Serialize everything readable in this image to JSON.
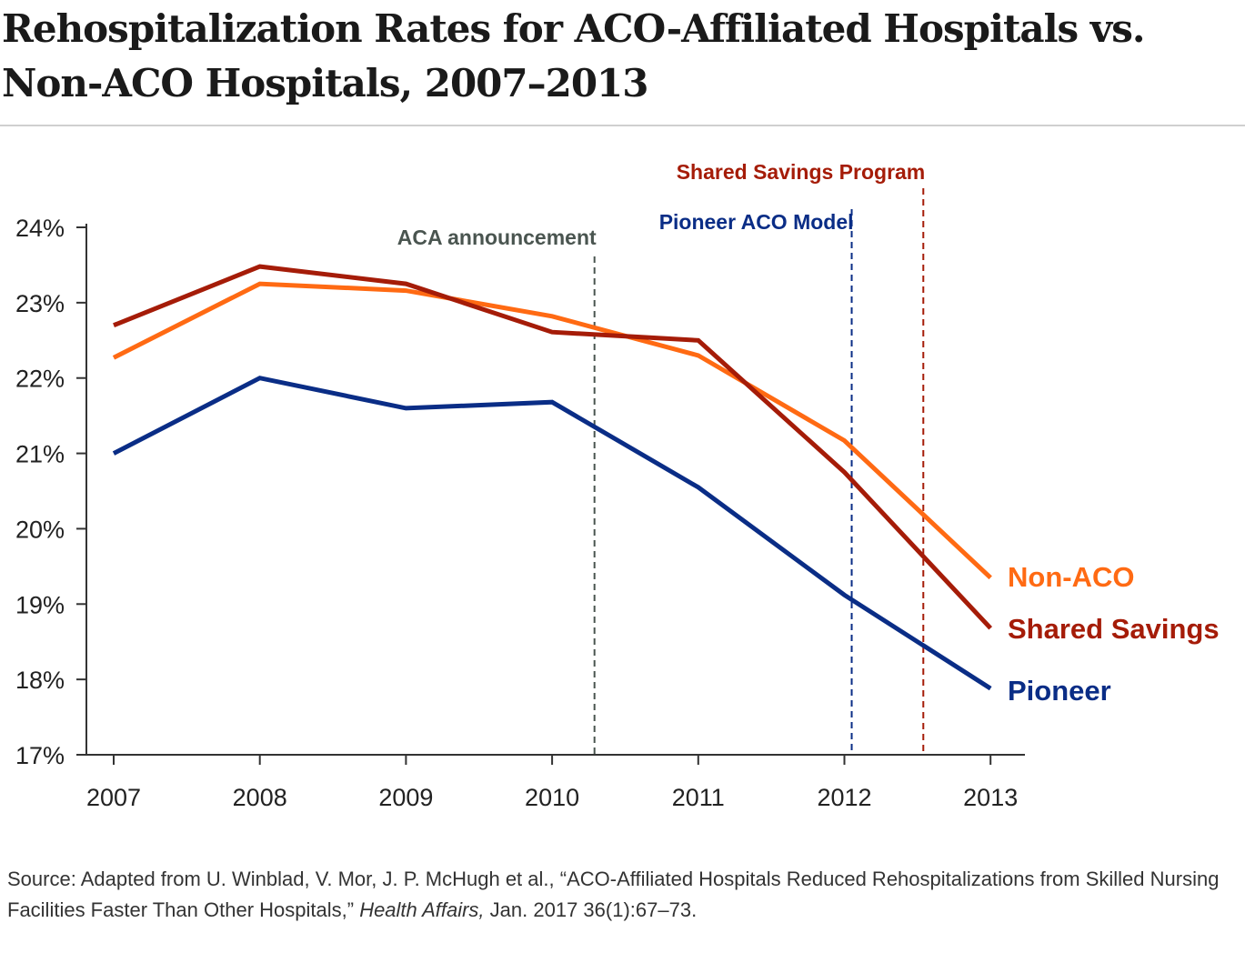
{
  "title": "Rehospitalization Rates for ACO-Affiliated Hospitals vs. Non-ACO Hospitals, 2007–2013",
  "chart_data": {
    "type": "line",
    "title": "Rehospitalization Rates for ACO-Affiliated Hospitals vs. Non-ACO Hospitals, 2007–2013",
    "xlabel": "",
    "ylabel": "",
    "x": [
      2007,
      2008,
      2009,
      2010,
      2011,
      2012,
      2013
    ],
    "x_tick_labels": [
      "2007",
      "2008",
      "2009",
      "2010",
      "2011",
      "2012",
      "2013"
    ],
    "ylim": [
      17,
      24
    ],
    "y_ticks": [
      17,
      18,
      19,
      20,
      21,
      22,
      23,
      24
    ],
    "y_tick_labels": [
      "17%",
      "18%",
      "19%",
      "20%",
      "21%",
      "22%",
      "23%",
      "24%"
    ],
    "grid": false,
    "series": [
      {
        "name": "Non-ACO",
        "color": "#ff6a13",
        "values": [
          22.27,
          23.25,
          23.16,
          22.82,
          22.3,
          21.17,
          19.35
        ]
      },
      {
        "name": "Shared Savings",
        "color": "#a51c08",
        "values": [
          22.7,
          23.48,
          23.25,
          22.61,
          22.5,
          20.75,
          18.68
        ]
      },
      {
        "name": "Pioneer",
        "color": "#0a2d86",
        "values": [
          21.0,
          22.0,
          21.6,
          21.68,
          20.55,
          19.12,
          17.88
        ]
      }
    ],
    "annotations": [
      {
        "text": "ACA announcement",
        "x": 2010.29,
        "color": "#4a5550"
      },
      {
        "text": "Pioneer ACO Model",
        "x": 2012.05,
        "color": "#0a2d86"
      },
      {
        "text": "Shared Savings Program",
        "x": 2012.54,
        "color": "#a51c08"
      }
    ]
  },
  "source": {
    "prefix": "Source: Adapted from U. Winblad, V. Mor, J. P. McHugh et al., “ACO-Affiliated Hospitals Reduced Rehospitalizations from Skilled Nursing Facilities Faster Than Other Hospitals,”",
    "journal": "Health Affairs,",
    "suffix": "Jan. 2017 36(1):67–73."
  }
}
